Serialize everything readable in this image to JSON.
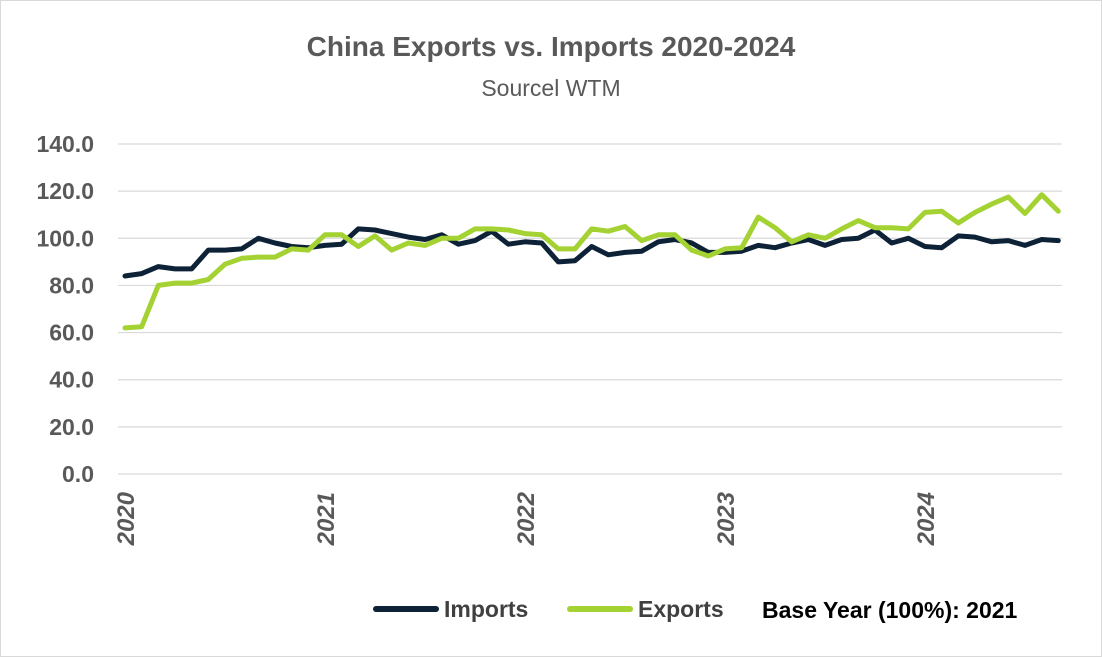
{
  "chart_data": {
    "type": "line",
    "title": "China Exports vs. Imports 2020-2024",
    "subtitle": "Sourcel WTM",
    "note": "Base Year (100%): 2021",
    "ylim": [
      0,
      140
    ],
    "yticks": [
      "0.0",
      "20.0",
      "40.0",
      "60.0",
      "80.0",
      "100.0",
      "120.0",
      "140.0"
    ],
    "xticks": [
      "2020",
      "2021",
      "2022",
      "2023",
      "2024"
    ],
    "x_start": "2020-01",
    "x_end": "2024-08",
    "grid": true,
    "legend_position": "bottom",
    "series": [
      {
        "name": "Imports",
        "color": "#0d2137",
        "values": [
          84,
          85,
          88,
          87,
          87,
          95,
          95,
          95.5,
          100,
          98,
          96.5,
          96,
          97,
          97.5,
          104,
          103.5,
          102,
          100.5,
          99.5,
          101.5,
          97.5,
          99,
          103,
          97.5,
          98.5,
          98,
          90,
          90.5,
          96.5,
          93,
          94,
          94.5,
          98.5,
          99.5,
          98,
          94,
          94,
          94.5,
          97,
          96,
          98,
          99.5,
          97,
          99.5,
          100,
          103.5,
          98,
          100,
          96.5,
          96,
          101,
          100.5,
          98.5,
          99,
          97,
          99.5,
          99
        ]
      },
      {
        "name": "Exports",
        "color": "#a4d233",
        "values": [
          62,
          62.5,
          80,
          81,
          81,
          82.5,
          89,
          91.5,
          92,
          92,
          95.5,
          95,
          101.5,
          101.5,
          96.5,
          101,
          95,
          98,
          97,
          100,
          100,
          104,
          104,
          103.5,
          102,
          101.5,
          95.5,
          95.5,
          104,
          103,
          105,
          99,
          101.5,
          101.5,
          95,
          92.5,
          95.5,
          96,
          109,
          104.5,
          98.5,
          101.5,
          100,
          104,
          107.5,
          104.5,
          104.5,
          104,
          111,
          111.5,
          106.5,
          111,
          114.5,
          117.5,
          110.5,
          118.5,
          111.5
        ]
      }
    ]
  }
}
